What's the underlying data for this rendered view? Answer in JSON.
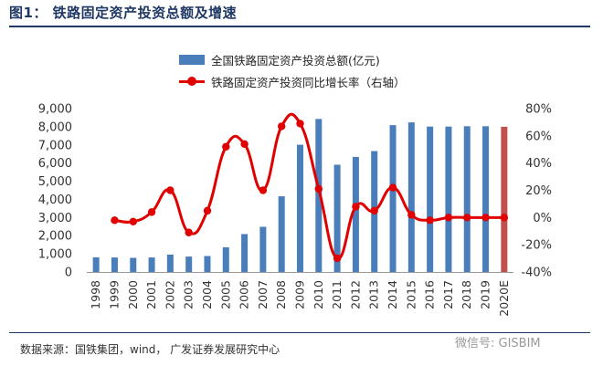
{
  "figure": {
    "title": "图1：  铁路固定资产投资总额及增速",
    "source": "数据来源：国铁集团，wind，  广发证券发展研究中心",
    "watermark": "微信号: GISBIM"
  },
  "chart_data": {
    "type": "bar+line",
    "categories": [
      "1998",
      "1999",
      "2000",
      "2001",
      "2002",
      "2003",
      "2004",
      "2005",
      "2006",
      "2007",
      "2008",
      "2009",
      "2010",
      "2011",
      "2012",
      "2013",
      "2014",
      "2015",
      "2016",
      "2017",
      "2018",
      "2019",
      "2020E"
    ],
    "series": [
      {
        "name": "全国铁路固定资产投资总额(亿元)",
        "kind": "bar",
        "axis": "left",
        "values": [
          810,
          800,
          780,
          800,
          960,
          850,
          880,
          1360,
          2090,
          2490,
          4170,
          7010,
          8430,
          5910,
          6340,
          6660,
          8090,
          8240,
          8010,
          8010,
          8030,
          8030,
          8000
        ],
        "color": "#4a7ebb",
        "highlight": {
          "category": "2020E",
          "color": "#c0504d"
        }
      },
      {
        "name": "铁路固定资产投资同比增长率（右轴）",
        "kind": "line",
        "axis": "right",
        "unit": "%",
        "values": [
          null,
          -2,
          -3,
          4,
          20,
          -11,
          5,
          52,
          54,
          20,
          67,
          69,
          21,
          -30,
          8,
          5,
          22,
          2,
          -2,
          0,
          0,
          0,
          0
        ],
        "color": "#e00000"
      }
    ],
    "y_left": {
      "min": 0,
      "max": 9000,
      "ticks": [
        0,
        1000,
        2000,
        3000,
        4000,
        5000,
        6000,
        7000,
        8000,
        9000
      ],
      "tick_labels": [
        "0",
        "1,000",
        "2,000",
        "3,000",
        "4,000",
        "5,000",
        "6,000",
        "7,000",
        "8,000",
        "9,000"
      ]
    },
    "y_right": {
      "min": -40,
      "max": 80,
      "ticks": [
        -40,
        -20,
        0,
        20,
        40,
        60,
        80
      ],
      "tick_labels": [
        "-40%",
        "-20%",
        "0%",
        "20%",
        "40%",
        "60%",
        "80%"
      ]
    },
    "legend": [
      "全国铁路固定资产投资总额(亿元)",
      "铁路固定资产投资同比增长率（右轴）"
    ],
    "legend_position": "top-center",
    "grid": false
  }
}
